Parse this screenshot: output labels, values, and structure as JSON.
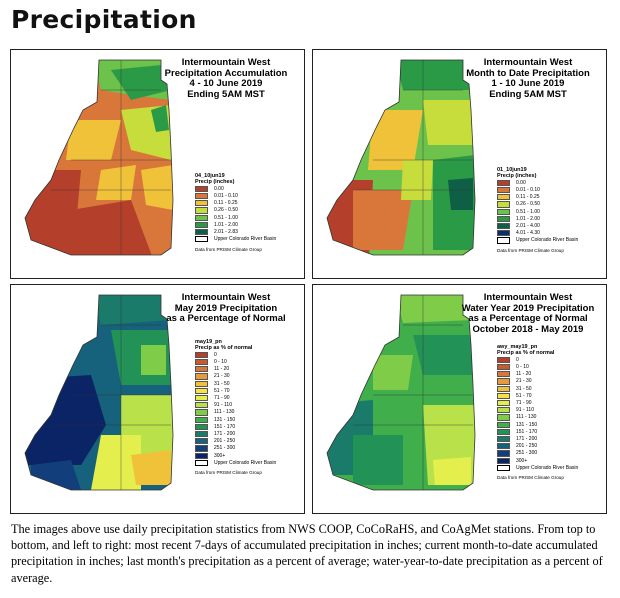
{
  "page_title": "Precipitation",
  "panels": [
    {
      "title_lines": [
        "Intermountain West",
        "Precipitation Accumulation",
        "4 - 10 June 2019",
        "Ending 5AM MST"
      ],
      "legend_name": "04_10jun19",
      "legend_subtitle": "Precip (inches)",
      "legend_items": [
        {
          "label": "0.00",
          "color": "#b4402c"
        },
        {
          "label": "0.01 - 0.10",
          "color": "#d9773a"
        },
        {
          "label": "0.11 - 0.25",
          "color": "#f0c23a"
        },
        {
          "label": "0.26 - 0.50",
          "color": "#c7dd3c"
        },
        {
          "label": "0.51 - 1.00",
          "color": "#6cc24a"
        },
        {
          "label": "1.01 - 2.00",
          "color": "#2a9a47"
        },
        {
          "label": "2.01 - 2.83",
          "color": "#0f5f46"
        }
      ],
      "basin_label": "Upper Colorado River Basin",
      "source": "Data from PRISM Climate Group"
    },
    {
      "title_lines": [
        "Intermountain West",
        "Month to Date Precipitation",
        "1 - 10 June 2019",
        "Ending 5AM MST"
      ],
      "legend_name": "01_10jun19",
      "legend_subtitle": "Precip (inches)",
      "legend_items": [
        {
          "label": "0.00",
          "color": "#b4402c"
        },
        {
          "label": "0.01 - 0.10",
          "color": "#d9773a"
        },
        {
          "label": "0.11 - 0.25",
          "color": "#f0c23a"
        },
        {
          "label": "0.26 - 0.50",
          "color": "#c7dd3c"
        },
        {
          "label": "0.51 - 1.00",
          "color": "#6cc24a"
        },
        {
          "label": "1.01 - 2.00",
          "color": "#2a9a47"
        },
        {
          "label": "2.01 - 4.00",
          "color": "#0f5f46"
        },
        {
          "label": "4.01 - 4.30",
          "color": "#0a2f6e"
        }
      ],
      "basin_label": "Upper Colorado River Basin",
      "source": "Data from PRISM Climate Group"
    },
    {
      "title_lines": [
        "Intermountain West",
        "May 2019 Precipitation",
        "as a Percentage of Normal"
      ],
      "legend_name": "may19_pn",
      "legend_subtitle": "Precip as % of normal",
      "legend_items": [
        {
          "label": "0",
          "color": "#b4402c"
        },
        {
          "label": "0 - 10",
          "color": "#c85a30"
        },
        {
          "label": "11 - 20",
          "color": "#d9773a"
        },
        {
          "label": "21 - 30",
          "color": "#e79a3d"
        },
        {
          "label": "31 - 50",
          "color": "#f0c23a"
        },
        {
          "label": "51 - 70",
          "color": "#f6e245"
        },
        {
          "label": "71 - 90",
          "color": "#e4ef4e"
        },
        {
          "label": "91 - 110",
          "color": "#b9e24a"
        },
        {
          "label": "111 - 130",
          "color": "#7fcc48"
        },
        {
          "label": "131 - 150",
          "color": "#3fae4b"
        },
        {
          "label": "151 - 170",
          "color": "#239257"
        },
        {
          "label": "171 - 200",
          "color": "#1a7b6b"
        },
        {
          "label": "201 - 250",
          "color": "#16617b"
        },
        {
          "label": "251 - 300",
          "color": "#123f7c"
        },
        {
          "label": "300+",
          "color": "#0b2466"
        }
      ],
      "basin_label": "Upper Colorado River Basin",
      "source": "Data from PRISM Climate Group"
    },
    {
      "title_lines": [
        "Intermountain West",
        "Water Year 2019 Precipitation",
        "as a Percentage of Normal",
        "October 2018 - May 2019"
      ],
      "legend_name": "awy_may19_pn",
      "legend_subtitle": "Precip as % of normal",
      "legend_items": [
        {
          "label": "0",
          "color": "#b4402c"
        },
        {
          "label": "0 - 10",
          "color": "#c85a30"
        },
        {
          "label": "11 - 20",
          "color": "#d9773a"
        },
        {
          "label": "21 - 30",
          "color": "#e79a3d"
        },
        {
          "label": "31 - 50",
          "color": "#f0c23a"
        },
        {
          "label": "51 - 70",
          "color": "#f6e245"
        },
        {
          "label": "71 - 90",
          "color": "#e4ef4e"
        },
        {
          "label": "91 - 110",
          "color": "#b9e24a"
        },
        {
          "label": "111 - 130",
          "color": "#7fcc48"
        },
        {
          "label": "131 - 150",
          "color": "#3fae4b"
        },
        {
          "label": "151 - 170",
          "color": "#239257"
        },
        {
          "label": "171 - 200",
          "color": "#1a7b6b"
        },
        {
          "label": "201 - 250",
          "color": "#16617b"
        },
        {
          "label": "251 - 300",
          "color": "#123f7c"
        },
        {
          "label": "300+",
          "color": "#0b2466"
        }
      ],
      "basin_label": "Upper Colorado River Basin",
      "source": "Data from PRISM Climate Group"
    }
  ],
  "caption": "The images above use daily precipitation statistics from NWS COOP, CoCoRaHS, and CoAgMet stations. From top to bottom, and left to right: most recent 7-days of accumulated precipitation in inches; current month-to-date accumulated precipitation in inches; last month's precipitation as a percent of average; water-year-to-date precipitation as a percent of average."
}
